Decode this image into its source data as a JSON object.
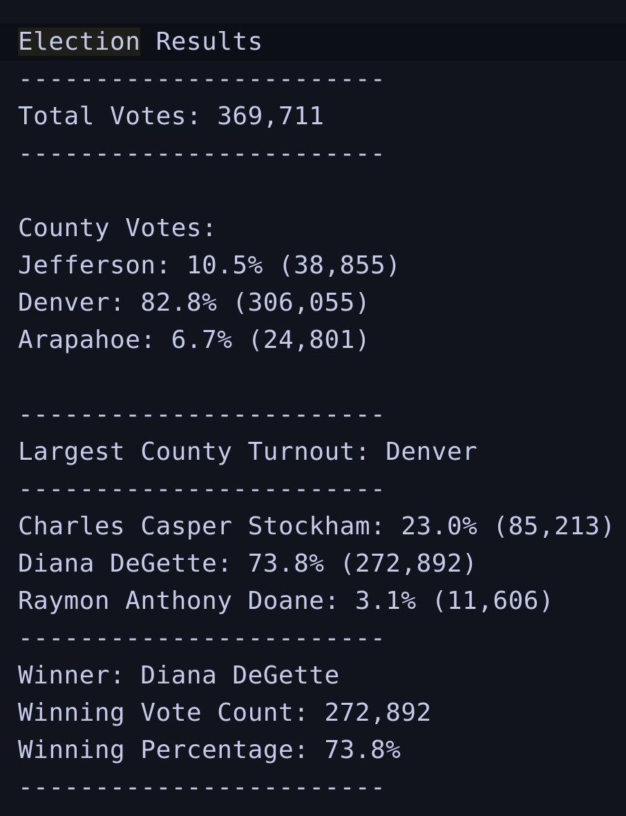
{
  "title": {
    "highlighted_word": "Election",
    "rest": " Results"
  },
  "separator": "------------------------",
  "total_votes_line": "Total Votes: 369,711",
  "county_header": "County Votes:",
  "counties": [
    "Jefferson: 10.5% (38,855)",
    "Denver: 82.8% (306,055)",
    "Arapahoe: 6.7% (24,801)"
  ],
  "largest_county_line": "Largest County Turnout: Denver",
  "candidates": [
    "Charles Casper Stockham: 23.0% (85,213)",
    "Diana DeGette: 73.8% (272,892)",
    "Raymon Anthony Doane: 3.1% (11,606)"
  ],
  "winner_line": "Winner: Diana DeGette",
  "winning_count_line": "Winning Vote Count: 272,892",
  "winning_percentage_line": "Winning Percentage: 73.8%",
  "colors": {
    "background": "#11131d",
    "current_line": "#0d0f16",
    "word_highlight": "#1f1f1a",
    "text": "#c6cae8"
  }
}
